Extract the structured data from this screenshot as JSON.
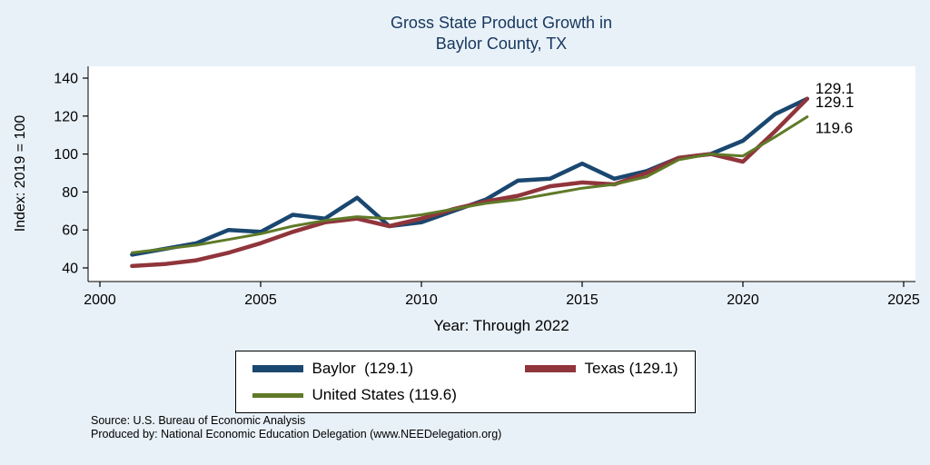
{
  "title": {
    "line1": "Gross State Product Growth in",
    "line2": "Baylor County, TX"
  },
  "legend": {
    "items": [
      {
        "label": "Baylor  (129.1)",
        "color": "#1a476f"
      },
      {
        "label": "Texas (129.1)",
        "color": "#90353b"
      },
      {
        "label": "United States (119.6)",
        "color": "#5f7a28"
      }
    ]
  },
  "footer": {
    "source": "Source: U.S. Bureau of Economic Analysis",
    "produced_by": "Produced by: National Economic Education Delegation (www.NEEDelegation.org)"
  },
  "colors": {
    "background": "#e8f1f8",
    "plot_background": "#ffffff",
    "title_text": "#17365d"
  },
  "chart_data": {
    "type": "line",
    "title": "Gross State Product Growth in Baylor County, TX",
    "xlabel": "Year: Through 2022",
    "ylabel": "Index: 2019 = 100",
    "xlim": [
      2000,
      2025
    ],
    "ylim": [
      40,
      140
    ],
    "xticks": [
      2000,
      2005,
      2010,
      2015,
      2020,
      2025
    ],
    "yticks": [
      40,
      60,
      80,
      100,
      120,
      140
    ],
    "grid": false,
    "legend_position": "bottom",
    "x": [
      2001,
      2002,
      2003,
      2004,
      2005,
      2006,
      2007,
      2008,
      2009,
      2010,
      2011,
      2012,
      2013,
      2014,
      2015,
      2016,
      2017,
      2018,
      2019,
      2020,
      2021,
      2022
    ],
    "series": [
      {
        "name": "Baylor",
        "color": "#1a476f",
        "end_label": "129.1",
        "values": [
          47,
          50,
          53,
          60,
          59,
          68,
          66,
          77,
          62,
          64,
          70,
          76,
          86,
          87,
          95,
          87,
          91,
          98,
          100,
          107,
          121,
          129.1
        ]
      },
      {
        "name": "Texas",
        "color": "#90353b",
        "end_label": "129.1",
        "values": [
          41,
          42,
          44,
          48,
          53,
          59,
          64,
          66,
          62,
          66,
          71,
          75,
          78,
          83,
          85,
          84,
          90,
          98,
          100,
          96,
          112,
          129.1
        ]
      },
      {
        "name": "United States",
        "color": "#5f7a28",
        "end_label": "119.6",
        "values": [
          48,
          50,
          52,
          55,
          58,
          62,
          65,
          67,
          66,
          68,
          71,
          74,
          76,
          79,
          82,
          84,
          88,
          97,
          100,
          99,
          109,
          119.6
        ]
      }
    ]
  }
}
